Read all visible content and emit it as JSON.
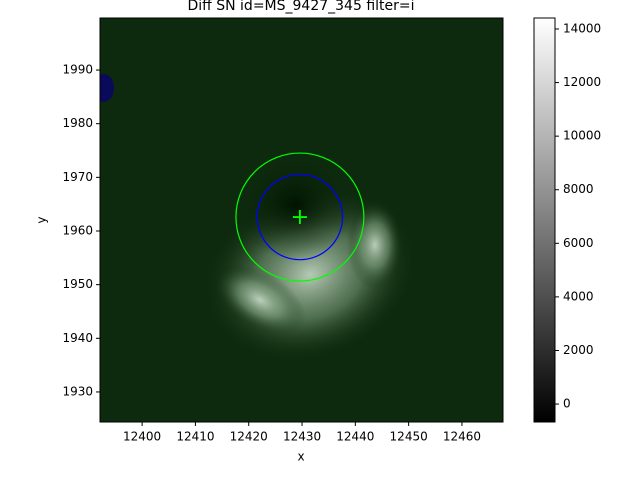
{
  "chart_data": {
    "type": "image",
    "title": "Diff SN id=MS_9427_345 filter=i",
    "xlabel": "x",
    "ylabel": "y",
    "xlim": [
      12392.1,
      12467.7
    ],
    "ylim": [
      1924.4,
      1999.7
    ],
    "xticks": [
      12400,
      12410,
      12420,
      12430,
      12440,
      12450,
      12460
    ],
    "yticks": [
      1930,
      1940,
      1950,
      1960,
      1970,
      1980,
      1990
    ],
    "center": {
      "x": 12429.6,
      "y": 1962.6,
      "color": "#00ff00"
    },
    "circles": [
      {
        "r": 12,
        "color": "#00ff00"
      },
      {
        "r": 8,
        "color": "#0000ff"
      }
    ],
    "colorbar": {
      "lim": [
        -670,
        14410
      ],
      "ticks": [
        0,
        2000,
        4000,
        6000,
        8000,
        10000,
        12000,
        14000
      ]
    }
  }
}
